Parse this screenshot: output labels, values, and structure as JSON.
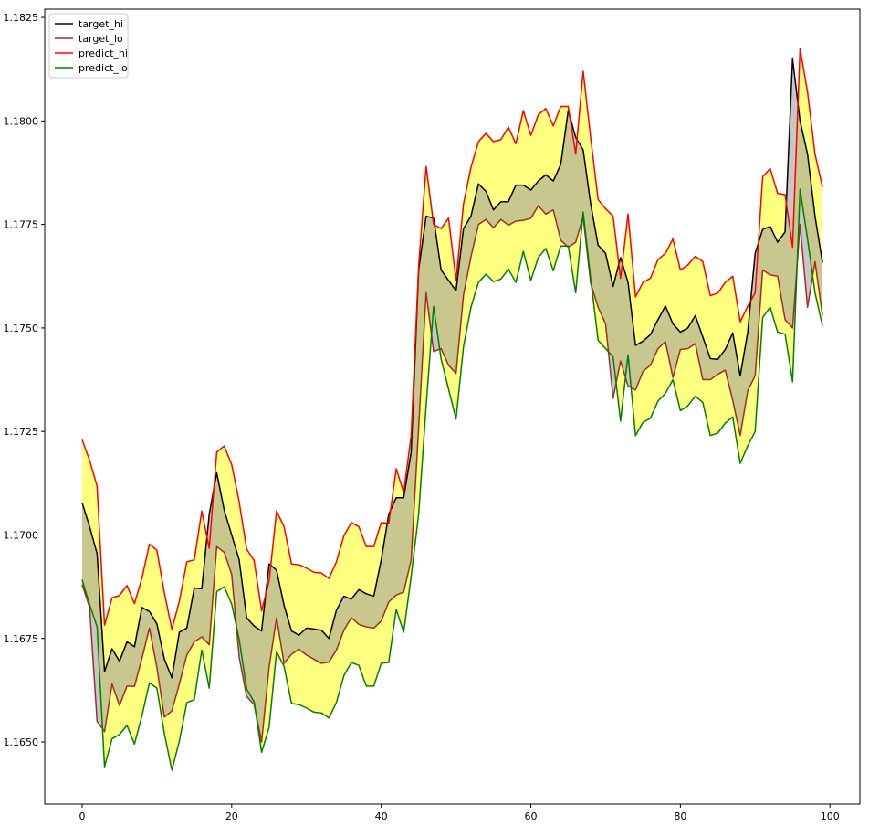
{
  "chart_data": {
    "type": "line",
    "title": "",
    "xlabel": "",
    "ylabel": "",
    "xlim": [
      -5,
      104
    ],
    "ylim": [
      1.1635,
      1.1827
    ],
    "grid": false,
    "legend_position": "top-left",
    "x_ticks": [
      0,
      20,
      40,
      60,
      80,
      100
    ],
    "x_tick_labels": [
      "0",
      "20",
      "40",
      "60",
      "80",
      "100"
    ],
    "y_ticks": [
      1.165,
      1.1675,
      1.17,
      1.1725,
      1.175,
      1.1775,
      1.18,
      1.1825
    ],
    "y_tick_labels": [
      "1.1650",
      "1.1675",
      "1.1700",
      "1.1725",
      "1.1750",
      "1.1775",
      "1.1800",
      "1.1825"
    ],
    "fills": [
      {
        "between": [
          "predict_hi",
          "predict_lo"
        ],
        "color": "#ffff80"
      },
      {
        "between": [
          "target_hi",
          "target_lo"
        ],
        "color": "#999999",
        "opacity": 0.55
      }
    ],
    "series": [
      {
        "name": "target_hi",
        "color": "#000000",
        "values": [
          1.17078,
          1.1702,
          1.16955,
          1.1667,
          1.16725,
          1.16695,
          1.16742,
          1.1673,
          1.16825,
          1.16815,
          1.16785,
          1.167,
          1.16655,
          1.16765,
          1.16775,
          1.16872,
          1.1687,
          1.1705,
          1.1715,
          1.1706,
          1.17,
          1.1694,
          1.168,
          1.1678,
          1.16768,
          1.1693,
          1.16915,
          1.1683,
          1.16768,
          1.16758,
          1.16775,
          1.16773,
          1.1677,
          1.1675,
          1.16818,
          1.16852,
          1.16845,
          1.16868,
          1.16858,
          1.16852,
          1.1694,
          1.1705,
          1.1709,
          1.1709,
          1.172,
          1.1764,
          1.1777,
          1.17765,
          1.1764,
          1.17615,
          1.1759,
          1.1774,
          1.1777,
          1.17848,
          1.1783,
          1.17785,
          1.17805,
          1.17805,
          1.17845,
          1.17845,
          1.17833,
          1.17855,
          1.1787,
          1.17855,
          1.17895,
          1.18025,
          1.1796,
          1.1793,
          1.178,
          1.177,
          1.1768,
          1.176,
          1.1767,
          1.1761,
          1.17458,
          1.17468,
          1.17484,
          1.1752,
          1.17553,
          1.1751,
          1.1749,
          1.175,
          1.1753,
          1.17478,
          1.17426,
          1.17424,
          1.17448,
          1.17488,
          1.17384,
          1.1749,
          1.1768,
          1.17738,
          1.17745,
          1.17707,
          1.17732,
          1.1815,
          1.18,
          1.1792,
          1.1777,
          1.17658
        ]
      },
      {
        "name": "target_lo",
        "color": "#a52a2a",
        "values": [
          1.1688,
          1.16825,
          1.1655,
          1.16525,
          1.1664,
          1.16588,
          1.16635,
          1.16634,
          1.16702,
          1.16775,
          1.1668,
          1.1656,
          1.16575,
          1.1664,
          1.1671,
          1.16742,
          1.16754,
          1.16735,
          1.16972,
          1.16958,
          1.16905,
          1.16705,
          1.1661,
          1.1659,
          1.165,
          1.1668,
          1.168,
          1.1669,
          1.16712,
          1.16724,
          1.1671,
          1.167,
          1.1669,
          1.16693,
          1.16722,
          1.1677,
          1.168,
          1.16784,
          1.16778,
          1.16775,
          1.16792,
          1.16838,
          1.16855,
          1.16862,
          1.1694,
          1.1726,
          1.17585,
          1.17443,
          1.1745,
          1.1741,
          1.1739,
          1.1758,
          1.17672,
          1.1775,
          1.17762,
          1.17742,
          1.17762,
          1.17748,
          1.17758,
          1.1776,
          1.17765,
          1.17795,
          1.17775,
          1.17785,
          1.17712,
          1.17695,
          1.17707,
          1.17768,
          1.17608,
          1.1755,
          1.1751,
          1.1733,
          1.1742,
          1.1736,
          1.1735,
          1.17395,
          1.1741,
          1.1745,
          1.17467,
          1.1738,
          1.17448,
          1.1745,
          1.17462,
          1.17375,
          1.17375,
          1.17388,
          1.17398,
          1.17325,
          1.1724,
          1.17348,
          1.17385,
          1.1764,
          1.17628,
          1.17625,
          1.1752,
          1.175,
          1.1775,
          1.1755,
          1.1766,
          1.1753
        ]
      },
      {
        "name": "predict_hi",
        "color": "#ff0000",
        "values": [
          1.1723,
          1.1718,
          1.17118,
          1.16782,
          1.16848,
          1.16854,
          1.16878,
          1.16834,
          1.16896,
          1.16978,
          1.16963,
          1.1686,
          1.16772,
          1.1684,
          1.16935,
          1.1694,
          1.17058,
          1.16968,
          1.172,
          1.17215,
          1.1717,
          1.1708,
          1.16966,
          1.16938,
          1.16817,
          1.16888,
          1.17058,
          1.1702,
          1.1693,
          1.16928,
          1.1692,
          1.1691,
          1.16908,
          1.16895,
          1.16935,
          1.16998,
          1.1703,
          1.1702,
          1.16972,
          1.16972,
          1.1703,
          1.17028,
          1.1716,
          1.17103,
          1.1724,
          1.1765,
          1.1789,
          1.1775,
          1.1774,
          1.17765,
          1.17615,
          1.178,
          1.17888,
          1.1795,
          1.1797,
          1.1795,
          1.17955,
          1.17985,
          1.17945,
          1.18025,
          1.17965,
          1.18015,
          1.1803,
          1.17988,
          1.18035,
          1.18035,
          1.1792,
          1.1812,
          1.1796,
          1.1781,
          1.17788,
          1.1777,
          1.1762,
          1.17775,
          1.17575,
          1.1761,
          1.1762,
          1.17665,
          1.1768,
          1.17715,
          1.1764,
          1.17652,
          1.17673,
          1.1766,
          1.17578,
          1.17584,
          1.1761,
          1.17625,
          1.17515,
          1.17552,
          1.17585,
          1.17865,
          1.17885,
          1.17825,
          1.17822,
          1.17695,
          1.18175,
          1.1807,
          1.1792,
          1.1784
        ]
      },
      {
        "name": "predict_lo",
        "color": "#008000",
        "values": [
          1.16892,
          1.16832,
          1.16778,
          1.1644,
          1.16508,
          1.16518,
          1.1654,
          1.16495,
          1.16563,
          1.16643,
          1.1663,
          1.1652,
          1.16432,
          1.16502,
          1.16595,
          1.16602,
          1.16722,
          1.1663,
          1.16863,
          1.16875,
          1.16833,
          1.16748,
          1.16628,
          1.16597,
          1.16475,
          1.16535,
          1.16718,
          1.16683,
          1.16593,
          1.1659,
          1.16582,
          1.16572,
          1.1657,
          1.16558,
          1.16595,
          1.1666,
          1.16692,
          1.16685,
          1.16635,
          1.16635,
          1.1669,
          1.16692,
          1.1682,
          1.16765,
          1.169,
          1.1705,
          1.17312,
          1.17552,
          1.17425,
          1.17352,
          1.1728,
          1.17455,
          1.1755,
          1.1761,
          1.1763,
          1.17612,
          1.17618,
          1.17642,
          1.1761,
          1.17685,
          1.17615,
          1.1767,
          1.17692,
          1.17638,
          1.17698,
          1.17698,
          1.17585,
          1.1778,
          1.1762,
          1.1747,
          1.1745,
          1.1743,
          1.17275,
          1.17435,
          1.1724,
          1.17272,
          1.17282,
          1.17323,
          1.17342,
          1.17375,
          1.173,
          1.17312,
          1.17335,
          1.1732,
          1.1724,
          1.17246,
          1.1727,
          1.17285,
          1.17173,
          1.17215,
          1.1725,
          1.17525,
          1.1755,
          1.1749,
          1.17485,
          1.1737,
          1.17835,
          1.17715,
          1.17585,
          1.17505
        ]
      }
    ]
  }
}
